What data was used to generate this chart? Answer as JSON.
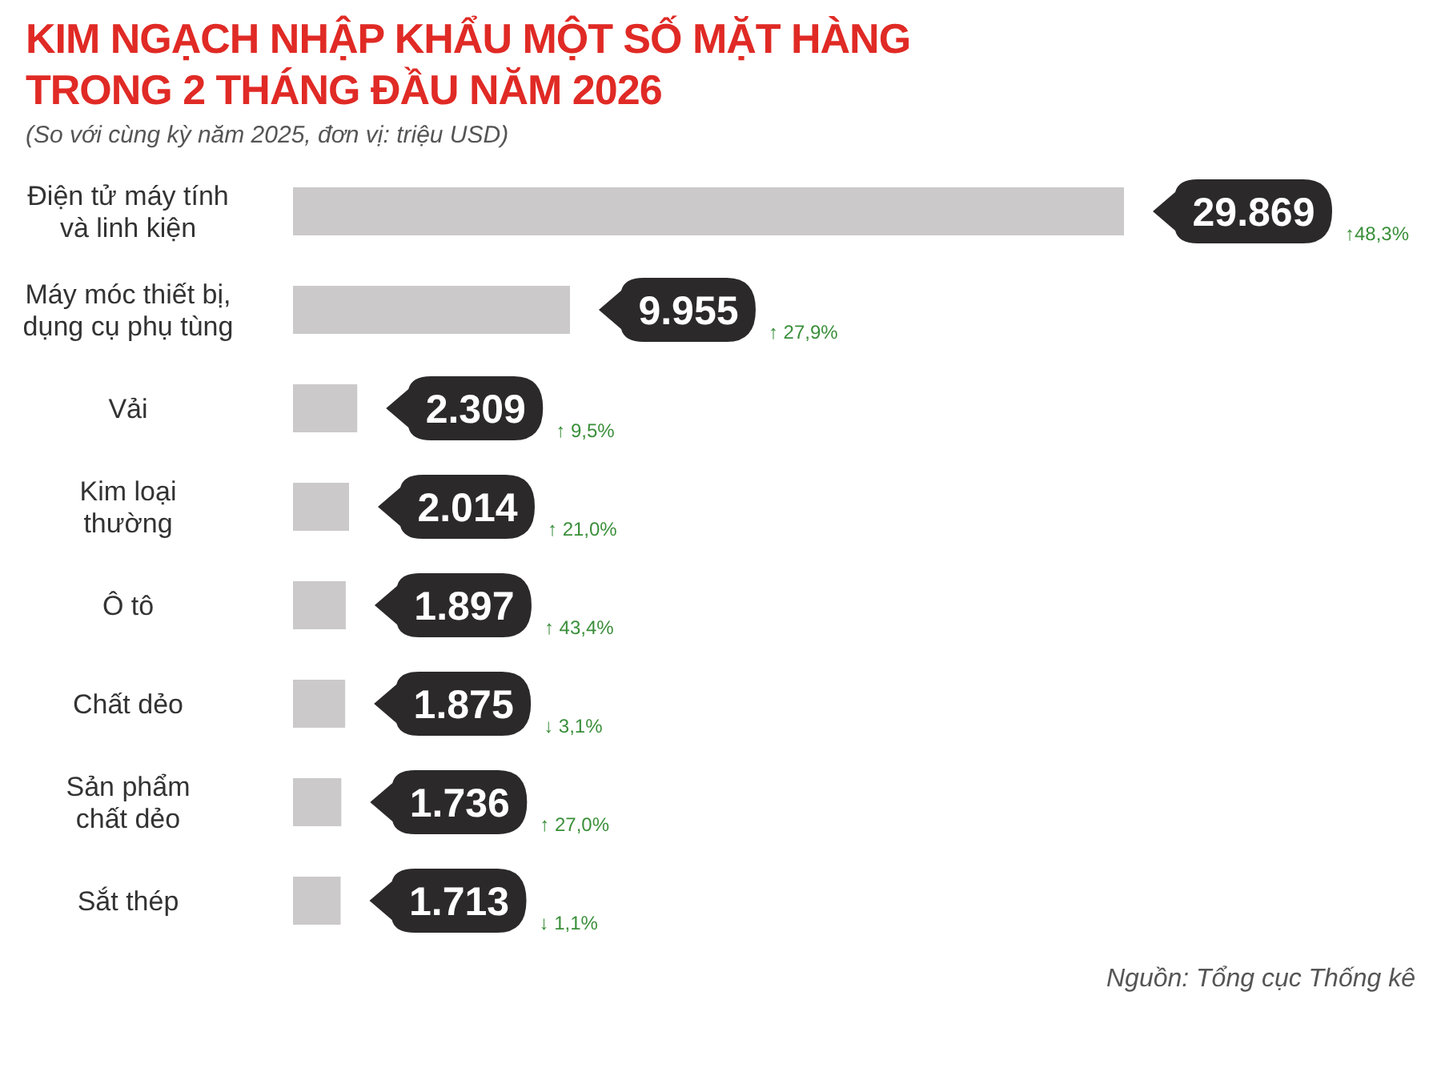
{
  "chart_data": {
    "type": "bar",
    "orientation": "horizontal",
    "title": "KIM NGẠCH NHẬP KHẨU MỘT SỐ MẶT HÀNG TRONG 2 THÁNG ĐẦU NĂM 2026",
    "subtitle": "(So với cùng kỳ năm 2025, đơn vị: triệu USD)",
    "categories": [
      "Điện tử máy tính\nvà linh kiện",
      "Máy móc thiết bị,\ndụng cụ phụ tùng",
      "Vải",
      "Kim loại\nthường",
      "Ô tô",
      "Chất dẻo",
      "Sản phẩm\nchất dẻo",
      "Sắt thép"
    ],
    "values": [
      29869,
      9955,
      2309,
      2014,
      1897,
      1875,
      1736,
      1713
    ],
    "value_labels": [
      "29.869",
      "9.955",
      "2.309",
      "2.014",
      "1.897",
      "1.875",
      "1.736",
      "1.713"
    ],
    "color": "#cbc9ca",
    "annotations": [
      "↑48,3%",
      "↑ 27,9%",
      "↑ 9,5%",
      "↑ 21,0%",
      "↑ 43,4%",
      "↓ 3,1%",
      "↑ 27,0%",
      "↓ 1,1%",
      "Nguồn: Tổng cục Thống kê"
    ]
  }
}
